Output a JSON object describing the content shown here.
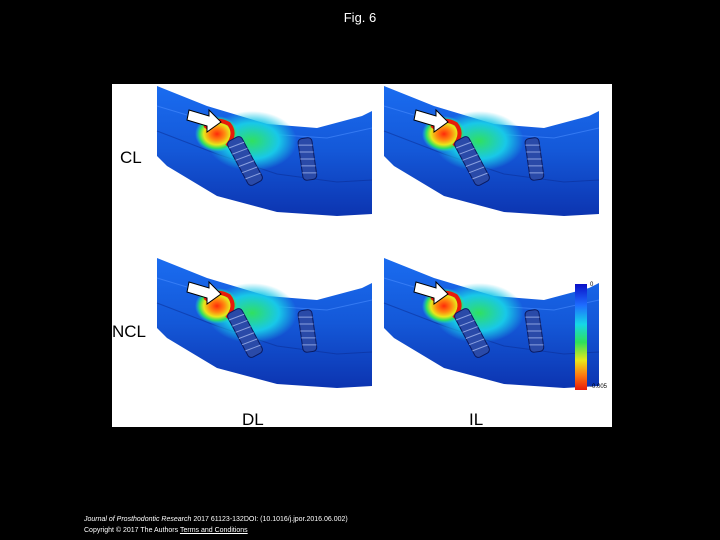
{
  "header": {
    "title": "Fig. 6"
  },
  "figure": {
    "row_labels": [
      "CL",
      "NCL"
    ],
    "col_labels": [
      "DL",
      "IL"
    ],
    "colorbar": {
      "max_label": "0",
      "min_label": "-0.005"
    },
    "colors": {
      "high": "#0a10c8",
      "low": "#e81a0a"
    }
  },
  "citation": {
    "journal": "Journal of Prosthodontic Research",
    "details": " 2017 61123-132DOI: (10.1016/j.jpor.2016.06.002)",
    "copyright": "Copyright © 2017 The Authors ",
    "link": "Terms and Conditions"
  }
}
